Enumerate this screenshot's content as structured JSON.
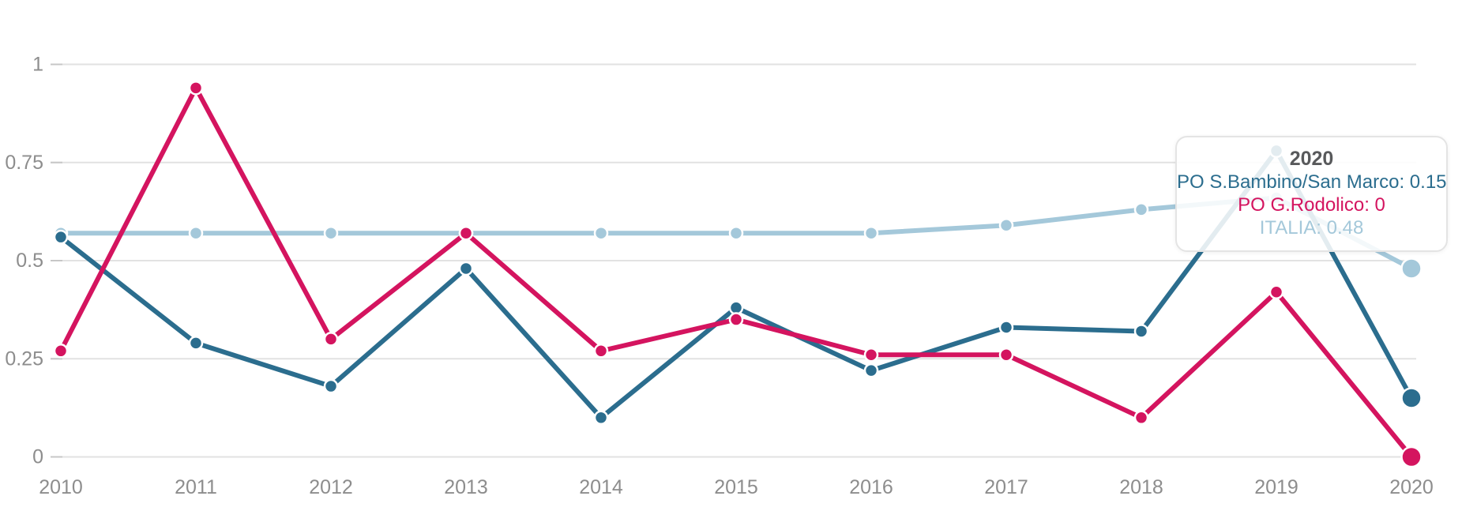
{
  "chart_data": {
    "type": "line",
    "x": [
      2010,
      2011,
      2012,
      2013,
      2014,
      2015,
      2016,
      2017,
      2018,
      2019,
      2020
    ],
    "series": [
      {
        "name": "PO S.Bambino/San Marco",
        "color": "#2b6d8e",
        "values": [
          0.56,
          0.29,
          0.18,
          0.48,
          0.1,
          0.38,
          0.22,
          0.33,
          0.32,
          0.78,
          0.15
        ]
      },
      {
        "name": "PO G.Rodolico",
        "color": "#d4145f",
        "values": [
          0.27,
          0.94,
          0.3,
          0.57,
          0.27,
          0.35,
          0.26,
          0.26,
          0.1,
          0.42,
          0
        ]
      },
      {
        "name": "ITALIA",
        "color": "#a4c8da",
        "values": [
          0.57,
          0.57,
          0.57,
          0.57,
          0.57,
          0.57,
          0.57,
          0.59,
          0.63,
          0.66,
          0.48
        ]
      }
    ],
    "ylim": [
      0,
      1
    ],
    "yticks": [
      0,
      0.25,
      0.5,
      0.75,
      1
    ],
    "ytick_labels": [
      "0",
      "0.25",
      "0.5",
      "0.75",
      "1"
    ],
    "grid": true,
    "legend_position": "none",
    "highlighted_x": 2020
  },
  "tooltip": {
    "title": "2020",
    "entries": [
      {
        "text": "PO S.Bambino/San Marco: 0.15",
        "series": 0
      },
      {
        "text": "PO G.Rodolico: 0",
        "series": 1
      },
      {
        "text": "ITALIA: 0.48",
        "series": 2
      }
    ]
  },
  "colors": {
    "grid": "#e2e2e2",
    "tick": "#c7c7c7",
    "axis_label": "#8d8d8d",
    "tooltip_title": "#58595b",
    "tooltip_border": "#e4e4e4"
  }
}
